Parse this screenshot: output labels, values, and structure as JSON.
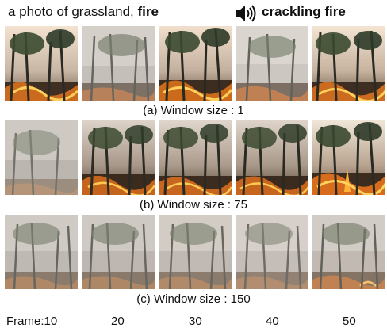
{
  "header": {
    "prompt_prefix": "a photo of grassland, ",
    "prompt_bold": "fire",
    "audio_label": "crackling fire",
    "speaker_icon": "speaker-icon"
  },
  "rows": [
    {
      "caption": "(a) Window size : 1"
    },
    {
      "caption": "(b) Window size : 75"
    },
    {
      "caption": "(c) Window size : 150"
    }
  ],
  "frame_axis": {
    "labels": [
      "Frame:10",
      "20",
      "30",
      "40",
      "50"
    ]
  }
}
